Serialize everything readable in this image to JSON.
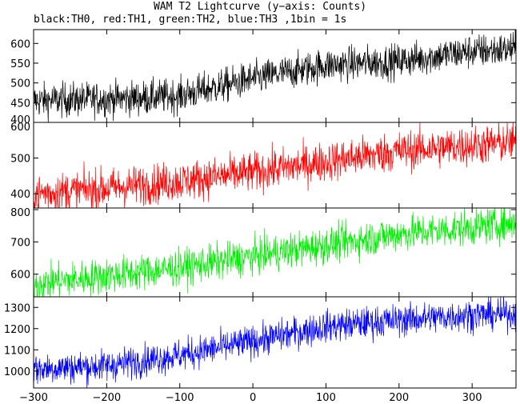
{
  "title": "WAM T2 Lightcurve (y−axis: Counts)",
  "subtitle": "black:TH0, red:TH1, green:TH2, blue:TH3 ,1bin = 1s",
  "chart_data": {
    "type": "line",
    "x_range": [
      -300,
      360
    ],
    "x_ticks": [
      -300,
      -200,
      -100,
      0,
      100,
      200,
      300
    ],
    "x_tick_labels": [
      "−300",
      "−200",
      "−100",
      "0",
      "100",
      "200",
      "300"
    ],
    "panels": [
      {
        "name": "TH0",
        "color": "#000000",
        "ylim": [
          400,
          635
        ],
        "y_ticks": [
          400,
          450,
          500,
          550,
          600
        ],
        "start_mean": 455,
        "end_mean": 585,
        "noise": 22,
        "trend": [
          [
            -300,
            455
          ],
          [
            -150,
            462
          ],
          [
            -100,
            468
          ],
          [
            0,
            510
          ],
          [
            100,
            545
          ],
          [
            200,
            555
          ],
          [
            300,
            580
          ],
          [
            360,
            585
          ]
        ]
      },
      {
        "name": "TH1",
        "color": "#ff0000",
        "ylim": [
          360,
          600
        ],
        "y_ticks": [
          400,
          500,
          600
        ],
        "trend": [
          [
            -300,
            400
          ],
          [
            -200,
            415
          ],
          [
            -100,
            435
          ],
          [
            0,
            460
          ],
          [
            100,
            490
          ],
          [
            200,
            520
          ],
          [
            300,
            535
          ],
          [
            360,
            545
          ]
        ],
        "noise": 28
      },
      {
        "name": "TH2",
        "color": "#00ee00",
        "ylim": [
          530,
          805
        ],
        "y_ticks": [
          600,
          700,
          800
        ],
        "trend": [
          [
            -300,
            570
          ],
          [
            -200,
            595
          ],
          [
            -100,
            620
          ],
          [
            0,
            655
          ],
          [
            100,
            690
          ],
          [
            200,
            725
          ],
          [
            300,
            745
          ],
          [
            360,
            760
          ]
        ],
        "noise": 28
      },
      {
        "name": "TH3",
        "color": "#0000ff",
        "ylim": [
          920,
          1350
        ],
        "y_ticks": [
          1000,
          1100,
          1200,
          1300
        ],
        "trend": [
          [
            -300,
            1010
          ],
          [
            -200,
            1025
          ],
          [
            -100,
            1075
          ],
          [
            0,
            1140
          ],
          [
            100,
            1210
          ],
          [
            200,
            1240
          ],
          [
            300,
            1265
          ],
          [
            360,
            1270
          ]
        ],
        "noise": 38
      }
    ]
  }
}
